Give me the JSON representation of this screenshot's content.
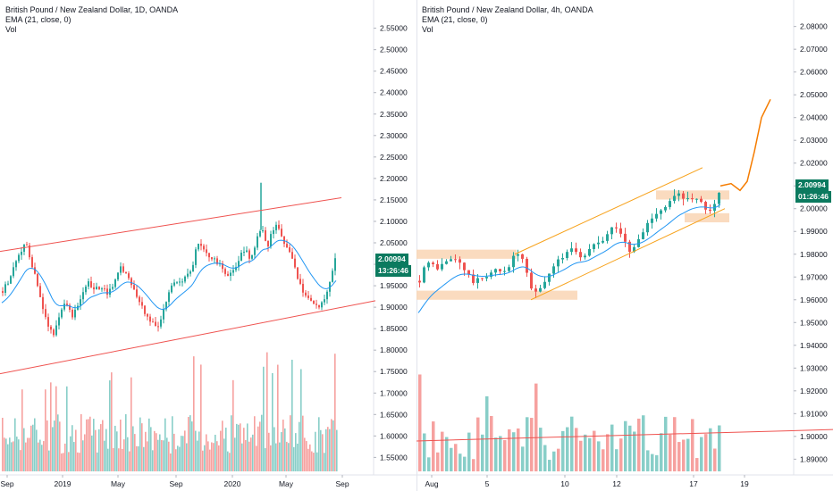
{
  "colors": {
    "up": "#26a69a",
    "down": "#ef5350",
    "ema": "#2196f3",
    "channel_left": "#ef5350",
    "channel_right": "#f7a21b",
    "zone": "#f9d5b4",
    "projection": "#f57c00",
    "badge": "#0b7a5f"
  },
  "left_chart": {
    "legend": {
      "title": "British Pound / New Zealand Dollar, 1D, OANDA",
      "ema": "EMA (21, close, 0)",
      "vol": "Vol"
    },
    "price_badge": "2.00994",
    "countdown_badge": "13:26:46",
    "chart_data": {
      "type": "candlestick",
      "symbol": "GBPNZD",
      "timeframe": "1D",
      "x_ticks": [
        "Sep",
        "2019",
        "May",
        "Sep",
        "2020",
        "May",
        "Sep"
      ],
      "y_ticks": [
        "2.55000",
        "2.50000",
        "2.45000",
        "2.40000",
        "2.35000",
        "2.30000",
        "2.25000",
        "2.20000",
        "2.15000",
        "2.10000",
        "2.05000",
        "2.00000",
        "1.95000",
        "1.90000",
        "1.85000",
        "1.80000",
        "1.75000",
        "1.70000",
        "1.65000",
        "1.60000",
        "1.55000"
      ],
      "ylim": [
        1.53,
        2.57
      ],
      "last_price": 2.00994,
      "close_path": [
        [
          0,
          1.93
        ],
        [
          8,
          1.96
        ],
        [
          15,
          2.0
        ],
        [
          22,
          2.03
        ],
        [
          28,
          2.05
        ],
        [
          33,
          2.01
        ],
        [
          40,
          1.96
        ],
        [
          47,
          1.9
        ],
        [
          53,
          1.86
        ],
        [
          58,
          1.83
        ],
        [
          63,
          1.86
        ],
        [
          68,
          1.9
        ],
        [
          74,
          1.91
        ],
        [
          80,
          1.88
        ],
        [
          86,
          1.9
        ],
        [
          92,
          1.94
        ],
        [
          98,
          1.96
        ],
        [
          105,
          1.94
        ],
        [
          112,
          1.95
        ],
        [
          120,
          1.93
        ],
        [
          128,
          1.96
        ],
        [
          134,
          1.99
        ],
        [
          140,
          1.98
        ],
        [
          146,
          1.95
        ],
        [
          152,
          1.93
        ],
        [
          158,
          1.9
        ],
        [
          164,
          1.88
        ],
        [
          170,
          1.86
        ],
        [
          176,
          1.86
        ],
        [
          182,
          1.89
        ],
        [
          188,
          1.93
        ],
        [
          194,
          1.96
        ],
        [
          200,
          1.96
        ],
        [
          207,
          1.97
        ],
        [
          214,
          1.99
        ],
        [
          220,
          2.05
        ],
        [
          226,
          2.04
        ],
        [
          232,
          2.02
        ],
        [
          240,
          2.01
        ],
        [
          248,
          1.99
        ],
        [
          255,
          1.97
        ],
        [
          262,
          1.99
        ],
        [
          268,
          2.02
        ],
        [
          274,
          2.03
        ],
        [
          280,
          2.01
        ],
        [
          286,
          2.06
        ],
        [
          292,
          2.08
        ],
        [
          298,
          2.04
        ],
        [
          304,
          2.08
        ],
        [
          309,
          2.09
        ],
        [
          314,
          2.06
        ],
        [
          320,
          2.04
        ],
        [
          326,
          2.01
        ],
        [
          332,
          1.97
        ],
        [
          338,
          1.94
        ],
        [
          344,
          1.92
        ],
        [
          350,
          1.91
        ],
        [
          356,
          1.9
        ],
        [
          362,
          1.92
        ],
        [
          368,
          1.96
        ],
        [
          374,
          2.01
        ]
      ],
      "spike": {
        "x": 292,
        "high": 2.19
      },
      "channel_upper": {
        "from": [
          0,
          2.03
        ],
        "to": [
          382,
          2.155
        ]
      },
      "channel_lower": {
        "from": [
          0,
          1.745
        ],
        "to": [
          420,
          1.915
        ]
      }
    }
  },
  "right_chart": {
    "legend": {
      "title": "British Pound / New Zealand Dollar, 4h, OANDA",
      "ema": "EMA (21, close, 0)",
      "vol": "Vol"
    },
    "price_badge": "2.00994",
    "countdown_badge": "01:26:46",
    "chart_data": {
      "type": "candlestick",
      "symbol": "GBPNZD",
      "timeframe": "4h",
      "x_ticks": [
        "Aug",
        "5",
        "10",
        "12",
        "17",
        "19"
      ],
      "y_ticks": [
        "2.08000",
        "2.07000",
        "2.06000",
        "2.05000",
        "2.04000",
        "2.03000",
        "2.02000",
        "2.01000",
        "2.00000",
        "1.99000",
        "1.98000",
        "1.97000",
        "1.96000",
        "1.95000",
        "1.94000",
        "1.93000",
        "1.92000",
        "1.91000",
        "1.90000",
        "1.89000"
      ],
      "ylim": [
        1.887,
        2.083
      ],
      "last_price": 2.00994,
      "close_path": [
        [
          0,
          1.965
        ],
        [
          6,
          1.975
        ],
        [
          14,
          1.976
        ],
        [
          22,
          1.974
        ],
        [
          30,
          1.976
        ],
        [
          38,
          1.978
        ],
        [
          46,
          1.977
        ],
        [
          54,
          1.972
        ],
        [
          62,
          1.968
        ],
        [
          70,
          1.969
        ],
        [
          78,
          1.971
        ],
        [
          86,
          1.973
        ],
        [
          94,
          1.972
        ],
        [
          102,
          1.975
        ],
        [
          110,
          1.981
        ],
        [
          118,
          1.977
        ],
        [
          124,
          1.968
        ],
        [
          130,
          1.962
        ],
        [
          136,
          1.965
        ],
        [
          142,
          1.968
        ],
        [
          148,
          1.972
        ],
        [
          154,
          1.977
        ],
        [
          160,
          1.978
        ],
        [
          166,
          1.98
        ],
        [
          172,
          1.983
        ],
        [
          178,
          1.981
        ],
        [
          184,
          1.978
        ],
        [
          190,
          1.98
        ],
        [
          196,
          1.985
        ],
        [
          202,
          1.986
        ],
        [
          208,
          1.987
        ],
        [
          214,
          1.99
        ],
        [
          220,
          1.993
        ],
        [
          226,
          1.99
        ],
        [
          232,
          1.985
        ],
        [
          238,
          1.98
        ],
        [
          244,
          1.985
        ],
        [
          250,
          1.988
        ],
        [
          256,
          1.993
        ],
        [
          262,
          1.996
        ],
        [
          268,
          1.999
        ],
        [
          274,
          2.0
        ],
        [
          280,
          2.002
        ],
        [
          286,
          2.005
        ],
        [
          292,
          2.006
        ],
        [
          298,
          2.004
        ],
        [
          304,
          2.006
        ],
        [
          310,
          2.004
        ],
        [
          316,
          2.003
        ],
        [
          322,
          2.0
        ],
        [
          328,
          1.998
        ],
        [
          334,
          2.003
        ],
        [
          340,
          2.01
        ]
      ],
      "projection": [
        [
          340,
          2.01
        ],
        [
          352,
          2.011
        ],
        [
          362,
          2.008
        ],
        [
          370,
          2.012
        ],
        [
          378,
          2.025
        ],
        [
          386,
          2.04
        ],
        [
          396,
          2.048
        ]
      ],
      "zones": [
        {
          "x0": 0,
          "x1": 112,
          "y0": 1.978,
          "y1": 1.982
        },
        {
          "x0": 0,
          "x1": 180,
          "y0": 1.96,
          "y1": 1.964
        },
        {
          "x0": 268,
          "x1": 350,
          "y0": 2.004,
          "y1": 2.008
        },
        {
          "x0": 300,
          "x1": 350,
          "y0": 1.994,
          "y1": 1.998
        }
      ],
      "channel_upper": {
        "from": [
          110,
          1.98
        ],
        "to": [
          320,
          2.018
        ]
      },
      "channel_lower": {
        "from": [
          128,
          1.96
        ],
        "to": [
          345,
          2.0
        ]
      },
      "volume_line": {
        "from": [
          0,
          1.898
        ],
        "to": [
          466,
          1.903
        ]
      }
    }
  }
}
